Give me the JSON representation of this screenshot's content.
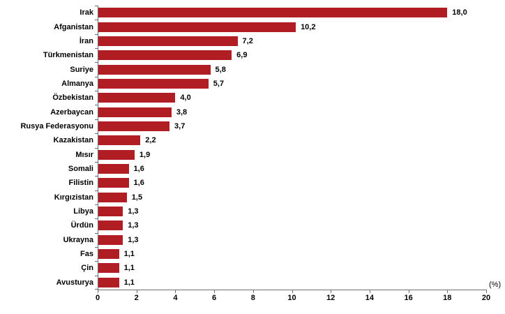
{
  "chart_data": {
    "type": "bar",
    "orientation": "horizontal",
    "title": "",
    "xlabel": "(%)",
    "ylabel": "",
    "categories": [
      "Irak",
      "Afganistan",
      "İran",
      "Türkmenistan",
      "Suriye",
      "Almanya",
      "Özbekistan",
      "Azerbaycan",
      "Rusya Federasyonu",
      "Kazakistan",
      "Mısır",
      "Somali",
      "Filistin",
      "Kırgızistan",
      "Libya",
      "Ürdün",
      "Ukrayna",
      "Fas",
      "Çin",
      "Avusturya"
    ],
    "values": [
      18.0,
      10.2,
      7.2,
      6.9,
      5.8,
      5.7,
      4.0,
      3.8,
      3.7,
      2.2,
      1.9,
      1.6,
      1.6,
      1.5,
      1.3,
      1.3,
      1.3,
      1.1,
      1.1,
      1.1
    ],
    "value_labels": [
      "18,0",
      "10,2",
      "7,2",
      "6,9",
      "5,8",
      "5,7",
      "4,0",
      "3,8",
      "3,7",
      "2,2",
      "1,9",
      "1,6",
      "1,6",
      "1,5",
      "1,3",
      "1,3",
      "1,3",
      "1,1",
      "1,1",
      "1,1"
    ],
    "xlim": [
      0,
      20
    ],
    "xticks": [
      0,
      2,
      4,
      6,
      8,
      10,
      12,
      14,
      16,
      18,
      20
    ],
    "grid": false,
    "legend": null,
    "bar_color": "#b01e23",
    "axis_color": "#6e6e6e",
    "text_color": "#000000"
  }
}
